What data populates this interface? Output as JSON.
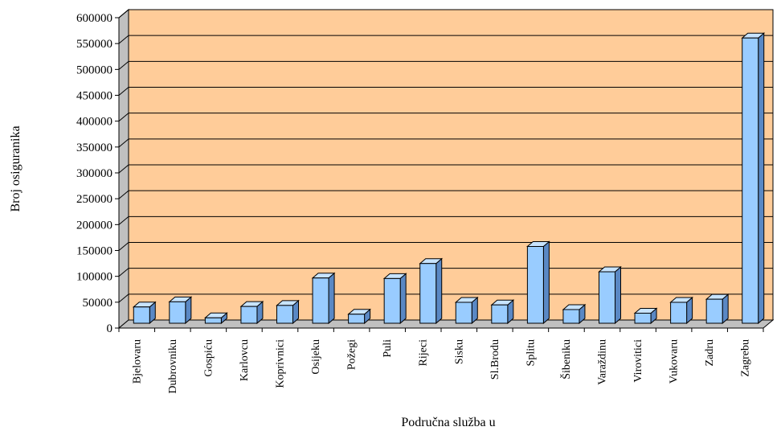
{
  "chart_data": {
    "type": "bar",
    "xlabel": "Područna služba u",
    "ylabel": "Broj osiguranika",
    "ylim": [
      0,
      600000
    ],
    "y_ticks": [
      "0",
      "50000",
      "100000",
      "150000",
      "200000",
      "250000",
      "300000",
      "350000",
      "400000",
      "450000",
      "500000",
      "550000",
      "600000"
    ],
    "grid": true,
    "legend": "none",
    "three_d": true,
    "categories": [
      "Bjelovaru",
      "Dubrovniku",
      "Gospiću",
      "Karlovcu",
      "Koprivnici",
      "Osijeku",
      "Požegi",
      "Puli",
      "Rijeci",
      "Sisku",
      "Sl.Brodu",
      "Splitu",
      "Šibeniku",
      "Varaždinu",
      "Virovitici",
      "Vukovaru",
      "Zadru",
      "Zagrebu"
    ],
    "values": [
      33000,
      43000,
      12000,
      34000,
      36000,
      89000,
      19000,
      88000,
      117000,
      42000,
      37000,
      150000,
      28000,
      101000,
      21000,
      42000,
      48000,
      553000
    ]
  },
  "colors": {
    "plot_bg": "#FFCC99",
    "bar_front": "#99CCFF",
    "bar_side": "#5A88C4",
    "bar_top": "#C8E4FF",
    "wall_side": "#C0C0C0",
    "grid": "#000000"
  }
}
